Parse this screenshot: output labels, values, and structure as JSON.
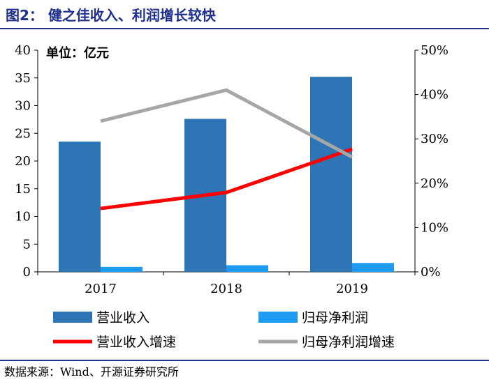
{
  "header": {
    "title": "图2：  健之佳收入、利润增长较快"
  },
  "footer": {
    "source": "数据来源：Wind、开源证券研究所"
  },
  "chart_data": {
    "type": "bar",
    "unit_label": "单位：亿元",
    "categories": [
      "2017",
      "2018",
      "2019"
    ],
    "ylim": [
      0,
      40
    ],
    "yticks": [
      "0",
      "5",
      "10",
      "15",
      "20",
      "25",
      "30",
      "35",
      "40"
    ],
    "y2lim": [
      0,
      50
    ],
    "y2ticks": [
      "0%",
      "10%",
      "20%",
      "30%",
      "40%",
      "50%"
    ],
    "grid": false,
    "legend_position": "bottom",
    "series": [
      {
        "name": "营业收入",
        "kind": "bar",
        "axis": "left",
        "color": "#2e75b6",
        "values": [
          23.5,
          27.6,
          35.2
        ]
      },
      {
        "name": "归母净利润",
        "kind": "bar",
        "axis": "left",
        "color": "#1e9bf0",
        "values": [
          0.9,
          1.2,
          1.6
        ]
      },
      {
        "name": "营业收入增速",
        "kind": "line",
        "axis": "right",
        "color": "#ff0000",
        "values": [
          14.3,
          17.9,
          27.7
        ]
      },
      {
        "name": "归母净利润增速",
        "kind": "line",
        "axis": "right",
        "color": "#a6a6a6",
        "values": [
          34.0,
          41.0,
          25.9
        ]
      }
    ]
  }
}
